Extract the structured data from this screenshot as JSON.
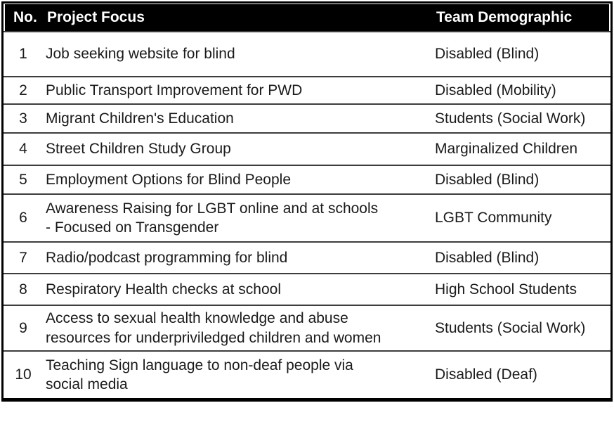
{
  "table": {
    "columns": {
      "no": "No.",
      "focus": "Project Focus",
      "demo": "Team Demographic"
    },
    "rows": [
      {
        "no": "1",
        "focus": "Job seeking website for blind",
        "demo": "Disabled (Blind)"
      },
      {
        "no": "2",
        "focus": "Public Transport Improvement for PWD",
        "demo": "Disabled (Mobility)"
      },
      {
        "no": "3",
        "focus": "Migrant Children's Education",
        "demo": "Students (Social Work)"
      },
      {
        "no": "4",
        "focus": "Street Children Study Group",
        "demo": "Marginalized Children"
      },
      {
        "no": "5",
        "focus": "Employment Options for Blind People",
        "demo": "Disabled (Blind)"
      },
      {
        "no": "6",
        "focus": "Awareness Raising for LGBT online and at schools - Focused on Transgender",
        "demo": "LGBT Community"
      },
      {
        "no": "7",
        "focus": "Radio/podcast programming for blind",
        "demo": "Disabled (Blind)"
      },
      {
        "no": "8",
        "focus": "Respiratory Health checks at school",
        "demo": "High School Students"
      },
      {
        "no": "9",
        "focus": "Access to sexual health knowledge and abuse resources for underpriviledged children and women",
        "demo": "Students (Social Work)"
      },
      {
        "no": "10",
        "focus": "Teaching Sign language to non-deaf people via social media",
        "demo": "Disabled (Deaf)"
      }
    ],
    "colors": {
      "header_bg": "#000000",
      "header_text": "#ffffff",
      "body_text": "#1a1a1a",
      "divider": "#3d3d3d",
      "outer_border": "#000000"
    }
  }
}
